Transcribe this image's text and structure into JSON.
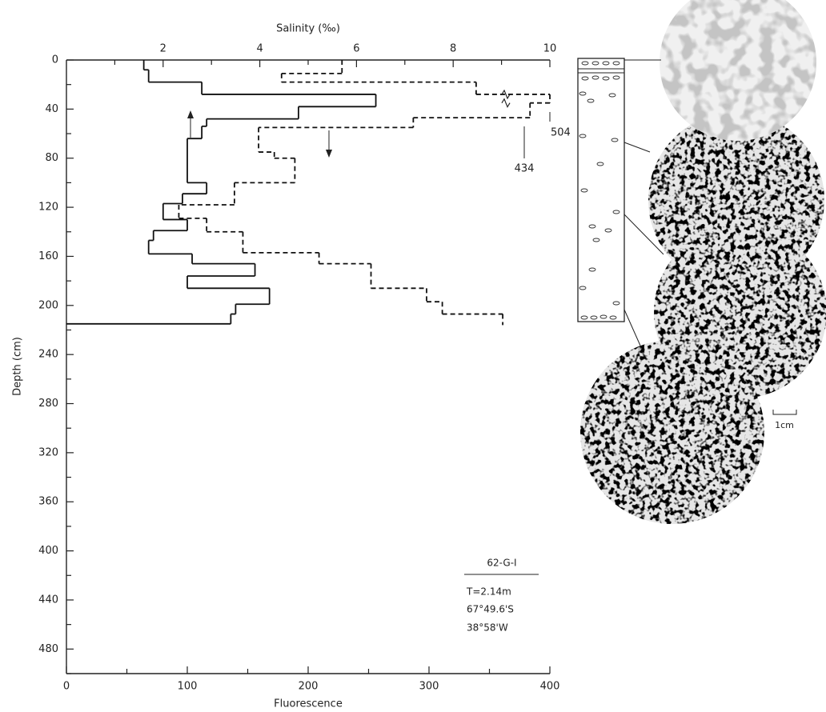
{
  "chart_data": {
    "type": "step-profile",
    "title": "Salinity (‰)",
    "xlabel": "Fluorescence",
    "ylabel": "Depth (cm)",
    "xlim": [
      0,
      400
    ],
    "xticks": [
      0,
      100,
      200,
      300,
      400
    ],
    "xminor": [
      50,
      150,
      250,
      350
    ],
    "x2lim": [
      0,
      10
    ],
    "x2ticks": [
      2,
      4,
      6,
      8,
      10
    ],
    "x2minor": [
      1,
      3,
      5,
      7,
      9
    ],
    "ylim": [
      0,
      500
    ],
    "y_inverted": true,
    "yticks": [
      0,
      40,
      80,
      120,
      160,
      200,
      240,
      280,
      320,
      360,
      400,
      440,
      480
    ],
    "yminor": [
      20,
      60,
      100,
      140,
      180,
      220,
      260,
      300,
      340,
      380,
      420,
      460,
      500
    ],
    "series": [
      {
        "name": "Salinity",
        "axis": "x2",
        "style": "solid",
        "depth": [
          0,
          8,
          18,
          28,
          38,
          48,
          54,
          64,
          100,
          109,
          117,
          130,
          139,
          147,
          158,
          166,
          176,
          186,
          199,
          207,
          215
        ],
        "values": [
          1.6,
          1.7,
          2.8,
          6.4,
          4.8,
          2.9,
          2.8,
          2.5,
          2.9,
          2.4,
          2.0,
          2.5,
          1.8,
          1.7,
          2.6,
          3.9,
          2.5,
          4.2,
          3.5,
          3.4
        ]
      },
      {
        "name": "Fluorescence",
        "axis": "x",
        "style": "dashed",
        "depth": [
          0,
          11,
          18,
          28,
          35,
          47,
          55,
          75,
          80,
          100,
          118,
          129,
          140,
          157,
          166,
          186,
          197,
          207,
          216
        ],
        "values": [
          228,
          178,
          339,
          504,
          434,
          287,
          159,
          172,
          189,
          139,
          93,
          116,
          146,
          209,
          252,
          298,
          311,
          361
        ]
      }
    ],
    "annotations": [
      "504",
      "434"
    ],
    "station": [
      "62-G-I",
      "T=2.14m",
      "67°49.6'S",
      "38°58'W"
    ],
    "scale_label": "1cm"
  }
}
